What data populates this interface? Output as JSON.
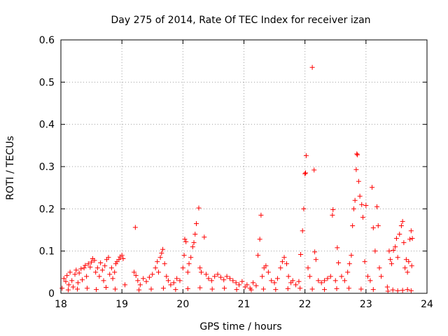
{
  "chart_data": {
    "type": "scatter",
    "title": "Day 275 of 2014, Rate Of TEC Index for receiver izan",
    "xlabel": "GPS time / hours",
    "ylabel": "ROTI / TECUs",
    "xlim": [
      18,
      24
    ],
    "ylim": [
      0,
      0.6
    ],
    "xticks": [
      "18",
      "19",
      "20",
      "21",
      "22",
      "23",
      "24"
    ],
    "yticks": [
      "0",
      "0.1",
      "0.2",
      "0.3",
      "0.4",
      "0.5",
      "0.6"
    ],
    "grid": true,
    "marker": "+",
    "color": "#ff0000",
    "series": [
      {
        "name": "ROTI",
        "points": [
          [
            18.02,
            0.012
          ],
          [
            18.05,
            0.035
          ],
          [
            18.08,
            0.028
          ],
          [
            18.1,
            0.042
          ],
          [
            18.13,
            0.02
          ],
          [
            18.15,
            0.05
          ],
          [
            18.18,
            0.03
          ],
          [
            18.2,
            0.015
          ],
          [
            18.23,
            0.045
          ],
          [
            18.25,
            0.055
          ],
          [
            18.28,
            0.025
          ],
          [
            18.3,
            0.048
          ],
          [
            18.33,
            0.058
          ],
          [
            18.35,
            0.032
          ],
          [
            18.38,
            0.06
          ],
          [
            18.4,
            0.066
          ],
          [
            18.42,
            0.04
          ],
          [
            18.45,
            0.07
          ],
          [
            18.48,
            0.062
          ],
          [
            18.5,
            0.074
          ],
          [
            18.52,
            0.082
          ],
          [
            18.55,
            0.078
          ],
          [
            18.57,
            0.05
          ],
          [
            18.6,
            0.06
          ],
          [
            18.63,
            0.04
          ],
          [
            18.65,
            0.072
          ],
          [
            18.68,
            0.055
          ],
          [
            18.7,
            0.03
          ],
          [
            18.72,
            0.065
          ],
          [
            18.75,
            0.08
          ],
          [
            18.78,
            0.085
          ],
          [
            18.8,
            0.045
          ],
          [
            18.83,
            0.06
          ],
          [
            18.85,
            0.035
          ],
          [
            18.88,
            0.05
          ],
          [
            18.9,
            0.07
          ],
          [
            18.92,
            0.075
          ],
          [
            18.95,
            0.08
          ],
          [
            18.97,
            0.086
          ],
          [
            19.0,
            0.09
          ],
          [
            19.02,
            0.082
          ],
          [
            18.12,
            0.008
          ],
          [
            18.27,
            0.01
          ],
          [
            18.43,
            0.012
          ],
          [
            18.58,
            0.009
          ],
          [
            18.74,
            0.014
          ],
          [
            18.89,
            0.01
          ],
          [
            19.05,
            0.02
          ],
          [
            19.22,
            0.156
          ],
          [
            19.2,
            0.05
          ],
          [
            19.23,
            0.042
          ],
          [
            19.26,
            0.03
          ],
          [
            19.3,
            0.02
          ],
          [
            19.35,
            0.035
          ],
          [
            19.4,
            0.028
          ],
          [
            19.45,
            0.038
          ],
          [
            19.5,
            0.045
          ],
          [
            19.55,
            0.06
          ],
          [
            19.58,
            0.075
          ],
          [
            19.6,
            0.05
          ],
          [
            19.63,
            0.085
          ],
          [
            19.65,
            0.095
          ],
          [
            19.67,
            0.104
          ],
          [
            19.7,
            0.07
          ],
          [
            19.73,
            0.04
          ],
          [
            19.76,
            0.03
          ],
          [
            19.8,
            0.02
          ],
          [
            19.85,
            0.025
          ],
          [
            19.9,
            0.035
          ],
          [
            19.95,
            0.03
          ],
          [
            20.0,
            0.06
          ],
          [
            20.02,
            0.09
          ],
          [
            20.03,
            0.128
          ],
          [
            20.05,
            0.122
          ],
          [
            20.08,
            0.05
          ],
          [
            20.1,
            0.07
          ],
          [
            20.13,
            0.085
          ],
          [
            20.16,
            0.11
          ],
          [
            20.18,
            0.12
          ],
          [
            20.2,
            0.14
          ],
          [
            20.22,
            0.165
          ],
          [
            20.26,
            0.202
          ],
          [
            20.28,
            0.06
          ],
          [
            20.3,
            0.05
          ],
          [
            20.35,
            0.133
          ],
          [
            20.38,
            0.045
          ],
          [
            20.42,
            0.035
          ],
          [
            20.47,
            0.03
          ],
          [
            20.52,
            0.04
          ],
          [
            20.57,
            0.045
          ],
          [
            20.62,
            0.038
          ],
          [
            20.67,
            0.032
          ],
          [
            20.72,
            0.04
          ],
          [
            20.77,
            0.035
          ],
          [
            20.82,
            0.03
          ],
          [
            20.87,
            0.025
          ],
          [
            20.92,
            0.02
          ],
          [
            20.97,
            0.028
          ],
          [
            19.28,
            0.008
          ],
          [
            19.48,
            0.01
          ],
          [
            19.68,
            0.012
          ],
          [
            19.88,
            0.009
          ],
          [
            20.08,
            0.011
          ],
          [
            20.28,
            0.013
          ],
          [
            20.48,
            0.01
          ],
          [
            20.68,
            0.012
          ],
          [
            20.88,
            0.009
          ],
          [
            21.02,
            0.015
          ],
          [
            21.05,
            0.02
          ],
          [
            21.1,
            0.012
          ],
          [
            21.15,
            0.025
          ],
          [
            21.2,
            0.018
          ],
          [
            21.23,
            0.09
          ],
          [
            21.26,
            0.128
          ],
          [
            21.28,
            0.185
          ],
          [
            21.3,
            0.04
          ],
          [
            21.33,
            0.06
          ],
          [
            21.36,
            0.065
          ],
          [
            21.4,
            0.05
          ],
          [
            21.45,
            0.03
          ],
          [
            21.5,
            0.025
          ],
          [
            21.55,
            0.035
          ],
          [
            21.6,
            0.06
          ],
          [
            21.63,
            0.075
          ],
          [
            21.66,
            0.085
          ],
          [
            21.7,
            0.07
          ],
          [
            21.73,
            0.04
          ],
          [
            21.77,
            0.025
          ],
          [
            21.8,
            0.03
          ],
          [
            21.85,
            0.02
          ],
          [
            21.9,
            0.028
          ],
          [
            21.93,
            0.092
          ],
          [
            21.96,
            0.148
          ],
          [
            21.98,
            0.2
          ],
          [
            22.0,
            0.283
          ],
          [
            22.01,
            0.285
          ],
          [
            22.02,
            0.326
          ],
          [
            22.05,
            0.06
          ],
          [
            22.08,
            0.04
          ],
          [
            22.12,
            0.535
          ],
          [
            22.15,
            0.292
          ],
          [
            22.16,
            0.098
          ],
          [
            22.18,
            0.08
          ],
          [
            22.22,
            0.03
          ],
          [
            22.27,
            0.025
          ],
          [
            22.32,
            0.03
          ],
          [
            22.37,
            0.035
          ],
          [
            22.42,
            0.04
          ],
          [
            22.45,
            0.185
          ],
          [
            22.46,
            0.198
          ],
          [
            22.5,
            0.03
          ],
          [
            22.53,
            0.108
          ],
          [
            22.55,
            0.072
          ],
          [
            22.6,
            0.04
          ],
          [
            22.65,
            0.03
          ],
          [
            22.7,
            0.05
          ],
          [
            22.73,
            0.07
          ],
          [
            22.76,
            0.09
          ],
          [
            22.78,
            0.16
          ],
          [
            22.8,
            0.2
          ],
          [
            22.82,
            0.22
          ],
          [
            22.84,
            0.293
          ],
          [
            22.85,
            0.33
          ],
          [
            22.86,
            0.328
          ],
          [
            22.88,
            0.265
          ],
          [
            22.9,
            0.23
          ],
          [
            22.93,
            0.21
          ],
          [
            22.95,
            0.18
          ],
          [
            22.98,
            0.075
          ],
          [
            23.0,
            0.208
          ],
          [
            23.03,
            0.04
          ],
          [
            23.07,
            0.03
          ],
          [
            23.1,
            0.251
          ],
          [
            23.12,
            0.155
          ],
          [
            23.15,
            0.1
          ],
          [
            23.18,
            0.205
          ],
          [
            23.2,
            0.16
          ],
          [
            23.22,
            0.06
          ],
          [
            23.25,
            0.04
          ],
          [
            21.12,
            0.008
          ],
          [
            21.32,
            0.01
          ],
          [
            21.52,
            0.009
          ],
          [
            21.72,
            0.011
          ],
          [
            21.92,
            0.012
          ],
          [
            22.12,
            0.01
          ],
          [
            22.32,
            0.009
          ],
          [
            22.52,
            0.011
          ],
          [
            22.72,
            0.012
          ],
          [
            22.92,
            0.01
          ],
          [
            23.12,
            0.009
          ],
          [
            23.35,
            0.015
          ],
          [
            23.38,
            0.1
          ],
          [
            23.4,
            0.08
          ],
          [
            23.42,
            0.07
          ],
          [
            23.45,
            0.102
          ],
          [
            23.48,
            0.11
          ],
          [
            23.5,
            0.13
          ],
          [
            23.52,
            0.085
          ],
          [
            23.55,
            0.14
          ],
          [
            23.58,
            0.16
          ],
          [
            23.6,
            0.17
          ],
          [
            23.62,
            0.12
          ],
          [
            23.64,
            0.06
          ],
          [
            23.66,
            0.08
          ],
          [
            23.68,
            0.05
          ],
          [
            23.7,
            0.075
          ],
          [
            23.72,
            0.128
          ],
          [
            23.74,
            0.148
          ],
          [
            23.75,
            0.065
          ],
          [
            23.76,
            0.13
          ],
          [
            23.36,
            0.005
          ],
          [
            23.44,
            0.008
          ],
          [
            23.52,
            0.006
          ],
          [
            23.6,
            0.007
          ],
          [
            23.68,
            0.009
          ],
          [
            23.74,
            0.006
          ]
        ]
      }
    ]
  }
}
